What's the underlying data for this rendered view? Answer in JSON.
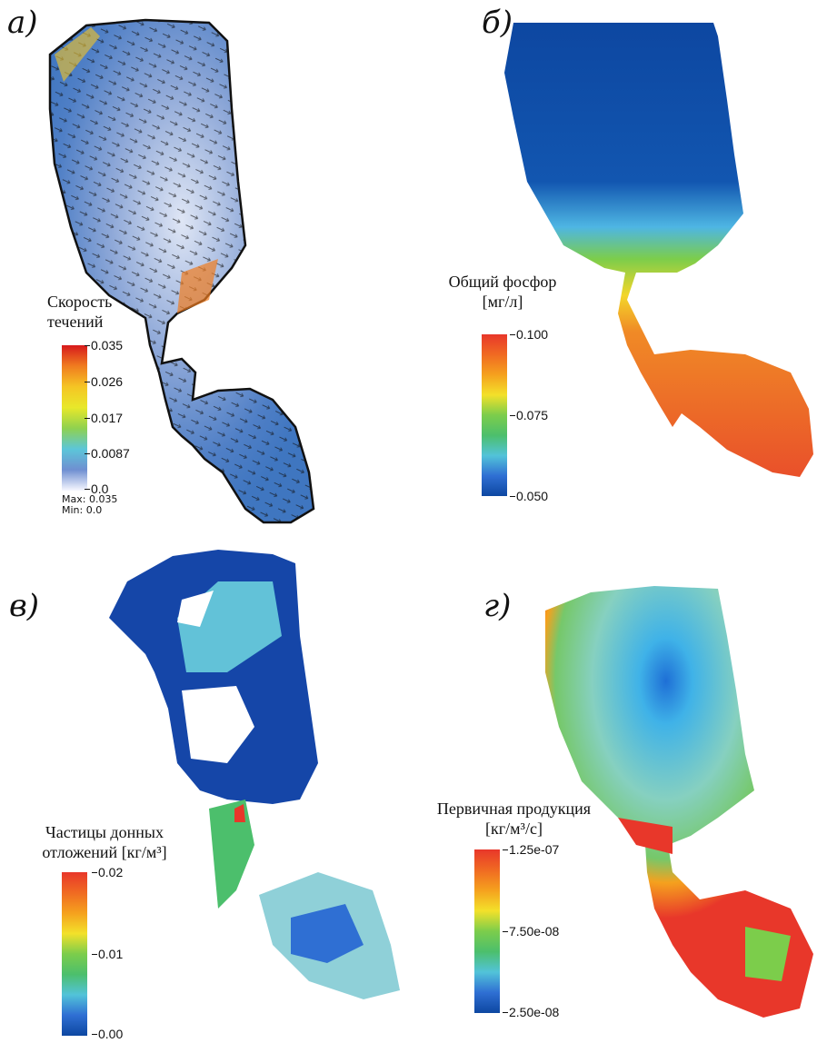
{
  "panels": [
    {
      "label": "а)",
      "title_lines": [
        "Скорость",
        "течений"
      ],
      "ticks": [
        "0.035",
        "0.026",
        "0.017",
        "0.0087",
        "0.0"
      ],
      "max_text": "Max: 0.035",
      "min_text": "Min: 0.0",
      "colormap": [
        "#d7191c",
        "#f07c1f",
        "#f5c524",
        "#e8e82a",
        "#8fd14f",
        "#5cc6d9",
        "#6f8fd1",
        "#f7f7ff"
      ]
    },
    {
      "label": "б)",
      "title_lines": [
        "Общий фосфор",
        "[мг/л]"
      ],
      "ticks": [
        "0.100",
        "0.075",
        "0.050"
      ],
      "colormap": [
        "#e8372a",
        "#f06a22",
        "#f5a11e",
        "#f3e12a",
        "#7ccd4b",
        "#4cbf6c",
        "#52c3d9",
        "#2f6fd3",
        "#0d47a1"
      ]
    },
    {
      "label": "в)",
      "title_lines": [
        "Частицы донных",
        "отложений [кг/м³]"
      ],
      "ticks": [
        "0.02",
        "0.01",
        "0.00"
      ],
      "colormap": [
        "#e8372a",
        "#f06a22",
        "#f5a11e",
        "#f3e12a",
        "#7ccd4b",
        "#4cbf6c",
        "#52c3d9",
        "#2f6fd3",
        "#0d47a1"
      ]
    },
    {
      "label": "г)",
      "title_lines": [
        "Первичная продукция",
        "[кг/м³/с]"
      ],
      "ticks": [
        "1.25e-07",
        "7.50e-08",
        "2.50e-08"
      ],
      "colormap": [
        "#e8372a",
        "#f06a22",
        "#f5a11e",
        "#f3e12a",
        "#7ccd4b",
        "#4cbf6c",
        "#52c3d9",
        "#2f6fd3",
        "#0d47a1"
      ]
    }
  ]
}
